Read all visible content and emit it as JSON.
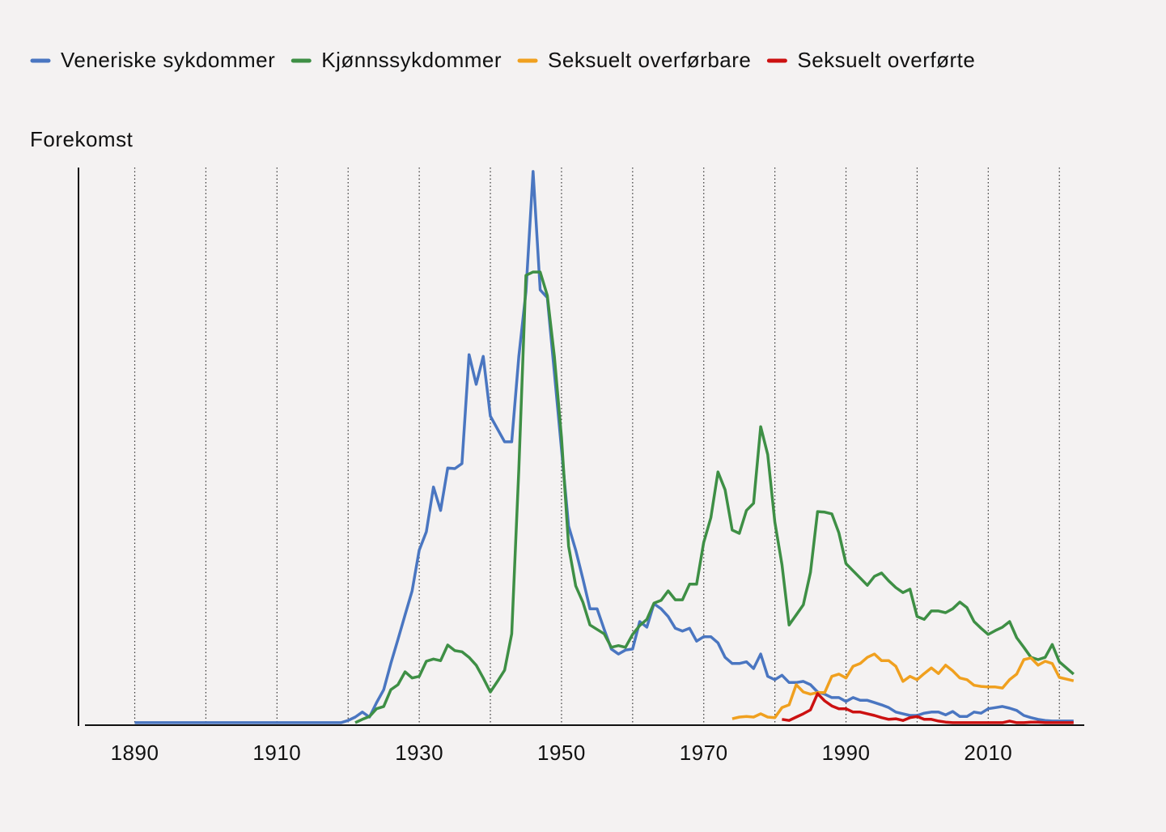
{
  "chart_data": {
    "type": "line",
    "y_label": "Forekomst",
    "x": [
      1890,
      1891,
      1892,
      1893,
      1894,
      1895,
      1896,
      1897,
      1898,
      1899,
      1900,
      1901,
      1902,
      1903,
      1904,
      1905,
      1906,
      1907,
      1908,
      1909,
      1910,
      1911,
      1912,
      1913,
      1914,
      1915,
      1916,
      1917,
      1918,
      1919,
      1920,
      1921,
      1922,
      1923,
      1924,
      1925,
      1926,
      1927,
      1928,
      1929,
      1930,
      1931,
      1932,
      1933,
      1934,
      1935,
      1936,
      1937,
      1938,
      1939,
      1940,
      1941,
      1942,
      1943,
      1944,
      1945,
      1946,
      1947,
      1948,
      1949,
      1950,
      1951,
      1952,
      1953,
      1954,
      1955,
      1956,
      1957,
      1958,
      1959,
      1960,
      1961,
      1962,
      1963,
      1964,
      1965,
      1966,
      1967,
      1968,
      1969,
      1970,
      1971,
      1972,
      1973,
      1974,
      1975,
      1976,
      1977,
      1978,
      1979,
      1980,
      1981,
      1982,
      1983,
      1984,
      1985,
      1986,
      1987,
      1988,
      1989,
      1990,
      1991,
      1992,
      1993,
      1994,
      1995,
      1996,
      1997,
      1998,
      1999,
      2000,
      2001,
      2002,
      2003,
      2004,
      2005,
      2006,
      2007,
      2008,
      2009,
      2010,
      2011,
      2012,
      2013,
      2014,
      2015,
      2016,
      2017,
      2018,
      2019,
      2020,
      2021,
      2022
    ],
    "series": [
      {
        "name": "Veneriske sykdommer",
        "color": "#4a76c1",
        "values": [
          0.3,
          0.3,
          0.3,
          0.3,
          0.3,
          0.3,
          0.3,
          0.3,
          0.3,
          0.3,
          0.3,
          0.3,
          0.3,
          0.3,
          0.3,
          0.3,
          0.3,
          0.3,
          0.3,
          0.3,
          0.3,
          0.3,
          0.3,
          0.3,
          0.3,
          0.3,
          0.3,
          0.3,
          0.3,
          0.3,
          0.7,
          1.3,
          2.2,
          1.3,
          3.9,
          6.2,
          10.9,
          15.2,
          19.6,
          23.9,
          31.2,
          34.5,
          42.5,
          38.3,
          45.9,
          45.8,
          46.7,
          66.2,
          60.9,
          65.9,
          55.2,
          52.9,
          50.6,
          50.6,
          65.9,
          77.5,
          99,
          77.8,
          76.4,
          63,
          49.3,
          35.5,
          31.2,
          26.1,
          20.7,
          20.7,
          17,
          13.5,
          12.6,
          13.3,
          13.5,
          18.4,
          17.4,
          21.6,
          20.7,
          19.3,
          17.2,
          16.7,
          17.2,
          14.9,
          15.7,
          15.7,
          14.6,
          12,
          10.9,
          10.9,
          11.2,
          10,
          12.6,
          8.6,
          8,
          8.8,
          7.5,
          7.5,
          7.7,
          7.1,
          5.8,
          5.4,
          4.8,
          4.8,
          4.1,
          4.8,
          4.3,
          4.3,
          3.9,
          3.5,
          3,
          2.2,
          1.9,
          1.6,
          1.6,
          2,
          2.2,
          2.2,
          1.7,
          2.3,
          1.4,
          1.4,
          2.2,
          2,
          2.8,
          3,
          3.2,
          2.9,
          2.5,
          1.6,
          1.2,
          0.9,
          0.7,
          0.6,
          0.6,
          0.6,
          0.6
        ]
      },
      {
        "name": "Kjønnssykdommer",
        "color": "#3e8f45",
        "values": [
          null,
          null,
          null,
          null,
          null,
          null,
          null,
          null,
          null,
          null,
          null,
          null,
          null,
          null,
          null,
          null,
          null,
          null,
          null,
          null,
          null,
          null,
          null,
          null,
          null,
          null,
          null,
          null,
          null,
          null,
          null,
          0.3,
          0.9,
          1.4,
          2.8,
          3.2,
          6.2,
          7.1,
          9.4,
          8.3,
          8.6,
          11.3,
          11.7,
          11.4,
          14.2,
          13.2,
          13,
          12,
          10.6,
          8.3,
          5.8,
          7.7,
          9.7,
          16.2,
          45.7,
          80.4,
          81,
          81,
          76.8,
          65.9,
          51.4,
          31.9,
          24.8,
          21.9,
          17.8,
          17,
          16.2,
          13.8,
          14.1,
          13.8,
          16.1,
          17.7,
          18.8,
          21.7,
          22.2,
          23.9,
          22.3,
          22.3,
          25.1,
          25.1,
          32.6,
          37,
          45.2,
          42,
          34.8,
          34.2,
          38.3,
          39.6,
          53.3,
          48.3,
          36.2,
          28.6,
          17.8,
          19.6,
          21.4,
          27.2,
          38.1,
          38,
          37.7,
          34.3,
          28.8,
          27.5,
          26.2,
          24.9,
          26.5,
          27.1,
          25.7,
          24.5,
          23.6,
          24.2,
          19.3,
          18.8,
          20.3,
          20.3,
          20,
          20.7,
          21.9,
          20.9,
          18.4,
          17.2,
          16.1,
          16.8,
          17.4,
          18.4,
          15.5,
          13.8,
          12,
          11.6,
          12,
          14.3,
          11.2,
          10.1,
          9
        ]
      },
      {
        "name": "Seksuelt overførbare",
        "color": "#f0a01f",
        "values": [
          null,
          null,
          null,
          null,
          null,
          null,
          null,
          null,
          null,
          null,
          null,
          null,
          null,
          null,
          null,
          null,
          null,
          null,
          null,
          null,
          null,
          null,
          null,
          null,
          null,
          null,
          null,
          null,
          null,
          null,
          null,
          null,
          null,
          null,
          null,
          null,
          null,
          null,
          null,
          null,
          null,
          null,
          null,
          null,
          null,
          null,
          null,
          null,
          null,
          null,
          null,
          null,
          null,
          null,
          null,
          null,
          null,
          null,
          null,
          null,
          null,
          null,
          null,
          null,
          null,
          null,
          null,
          null,
          null,
          null,
          null,
          null,
          null,
          null,
          null,
          null,
          null,
          null,
          null,
          null,
          null,
          null,
          null,
          null,
          1,
          1.3,
          1.4,
          1.3,
          1.9,
          1.3,
          1.2,
          3,
          3.5,
          7.1,
          5.8,
          5.4,
          5.7,
          5.7,
          8.6,
          9,
          8.3,
          10.4,
          10.9,
          12,
          12.6,
          11.4,
          11.4,
          10.4,
          7.7,
          8.6,
          8,
          9.1,
          10.1,
          9.1,
          10.6,
          9.6,
          8.3,
          8,
          7,
          6.8,
          6.7,
          6.7,
          6.5,
          8,
          9,
          11.6,
          11.9,
          10.6,
          11.3,
          10.9,
          8.4,
          8.1,
          7.8
        ]
      },
      {
        "name": "Seksuelt overførte",
        "color": "#cc1111",
        "values": [
          null,
          null,
          null,
          null,
          null,
          null,
          null,
          null,
          null,
          null,
          null,
          null,
          null,
          null,
          null,
          null,
          null,
          null,
          null,
          null,
          null,
          null,
          null,
          null,
          null,
          null,
          null,
          null,
          null,
          null,
          null,
          null,
          null,
          null,
          null,
          null,
          null,
          null,
          null,
          null,
          null,
          null,
          null,
          null,
          null,
          null,
          null,
          null,
          null,
          null,
          null,
          null,
          null,
          null,
          null,
          null,
          null,
          null,
          null,
          null,
          null,
          null,
          null,
          null,
          null,
          null,
          null,
          null,
          null,
          null,
          null,
          null,
          null,
          null,
          null,
          null,
          null,
          null,
          null,
          null,
          null,
          null,
          null,
          null,
          null,
          null,
          null,
          null,
          null,
          null,
          null,
          0.9,
          0.7,
          1.3,
          1.9,
          2.6,
          5.5,
          4.2,
          3.3,
          2.8,
          2.8,
          2.2,
          2.2,
          1.9,
          1.6,
          1.2,
          0.9,
          1,
          0.7,
          1.2,
          1.4,
          0.9,
          0.9,
          0.6,
          0.4,
          0.3,
          0.3,
          0.3,
          0.3,
          0.3,
          0.3,
          0.3,
          0.3,
          0.6,
          0.3,
          0.3,
          0.4,
          0.4,
          0.3,
          0.3,
          0.3,
          0.3,
          0.3
        ]
      }
    ],
    "xlim": [
      1883,
      2023.5
    ],
    "ylim": [
      0,
      100
    ],
    "xticks": [
      1890,
      1910,
      1930,
      1950,
      1970,
      1990,
      2010
    ],
    "xgrid": [
      1890,
      1900,
      1910,
      1920,
      1930,
      1940,
      1950,
      1960,
      1970,
      1980,
      1990,
      2000,
      2010,
      2020
    ],
    "grid": true
  }
}
